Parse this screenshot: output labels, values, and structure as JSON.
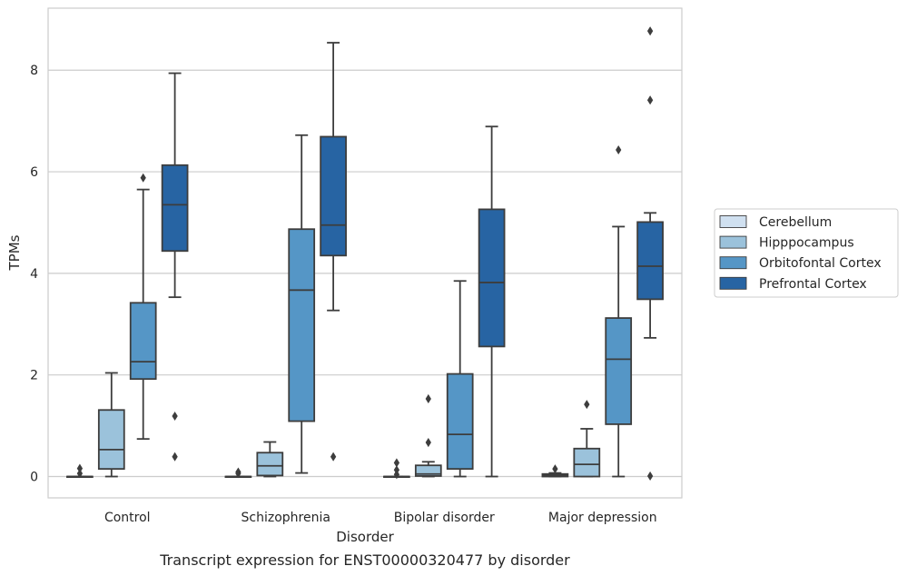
{
  "chart_data": {
    "type": "box",
    "title": "",
    "caption": "Transcript expression for ENST00000320477 by disorder",
    "xlabel": "Disorder",
    "ylabel": "TPMs",
    "ylim": [
      -0.42,
      9.22
    ],
    "yticks": [
      0,
      2,
      4,
      6,
      8
    ],
    "grid": "horizontal",
    "legend_position": "right",
    "categories": [
      "Control",
      "Schizophrenia",
      "Bipolar disorder",
      "Major depression"
    ],
    "series": [
      {
        "name": "Cerebellum",
        "color": "#d0e0f0",
        "boxes": [
          {
            "whislo": 0,
            "q1": 0,
            "med": 0,
            "q3": 0,
            "whishi": 0,
            "fliers": [
              0.06,
              0.16
            ]
          },
          {
            "whislo": 0,
            "q1": 0,
            "med": 0,
            "q3": 0,
            "whishi": 0,
            "fliers": [
              0.06,
              0.09
            ]
          },
          {
            "whislo": 0,
            "q1": 0,
            "med": 0,
            "q3": 0,
            "whishi": 0,
            "fliers": [
              0.04,
              0.13,
              0.27
            ]
          },
          {
            "whislo": 0,
            "q1": 0,
            "med": 0.02,
            "q3": 0.05,
            "whishi": 0.07,
            "fliers": [
              0.15
            ]
          }
        ]
      },
      {
        "name": "Hipppocampus",
        "color": "#9bc2db",
        "boxes": [
          {
            "whislo": 0,
            "q1": 0.15,
            "med": 0.53,
            "q3": 1.31,
            "whishi": 2.04,
            "fliers": []
          },
          {
            "whislo": 0,
            "q1": 0.02,
            "med": 0.21,
            "q3": 0.47,
            "whishi": 0.68,
            "fliers": []
          },
          {
            "whislo": 0,
            "q1": 0.01,
            "med": 0.05,
            "q3": 0.22,
            "whishi": 0.29,
            "fliers": [
              0.67,
              1.53
            ]
          },
          {
            "whislo": 0,
            "q1": 0.0,
            "med": 0.24,
            "q3": 0.55,
            "whishi": 0.94,
            "fliers": [
              1.42
            ]
          }
        ]
      },
      {
        "name": "Orbitofontal Cortex",
        "color": "#5596c6",
        "boxes": [
          {
            "whislo": 0.74,
            "q1": 1.92,
            "med": 2.26,
            "q3": 3.42,
            "whishi": 5.65,
            "fliers": [
              5.88
            ]
          },
          {
            "whislo": 0.07,
            "q1": 1.09,
            "med": 3.67,
            "q3": 4.87,
            "whishi": 6.72,
            "fliers": []
          },
          {
            "whislo": 0,
            "q1": 0.15,
            "med": 0.83,
            "q3": 2.02,
            "whishi": 3.85,
            "fliers": []
          },
          {
            "whislo": 0,
            "q1": 1.03,
            "med": 2.31,
            "q3": 3.12,
            "whishi": 4.92,
            "fliers": [
              6.43
            ]
          }
        ]
      },
      {
        "name": "Prefrontal Cortex",
        "color": "#2764a3",
        "boxes": [
          {
            "whislo": 3.53,
            "q1": 4.44,
            "med": 5.35,
            "q3": 6.13,
            "whishi": 7.94,
            "fliers": [
              0.39,
              1.19
            ]
          },
          {
            "whislo": 3.27,
            "q1": 4.35,
            "med": 4.95,
            "q3": 6.69,
            "whishi": 8.54,
            "fliers": [
              0.39
            ]
          },
          {
            "whislo": 0,
            "q1": 2.56,
            "med": 3.82,
            "q3": 5.26,
            "whishi": 6.89,
            "fliers": []
          },
          {
            "whislo": 2.73,
            "q1": 3.49,
            "med": 4.14,
            "q3": 5.01,
            "whishi": 5.19,
            "fliers": [
              0.01,
              7.41,
              8.77
            ]
          }
        ]
      }
    ]
  }
}
